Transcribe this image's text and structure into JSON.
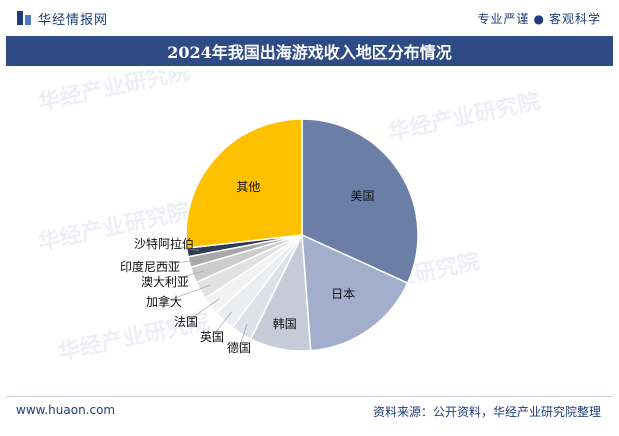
{
  "header": {
    "site_name": "华经情报网",
    "slogan_left": "专业严谨",
    "slogan_right": "客观科学"
  },
  "title": "2024年我国出海游戏收入地区分布情况",
  "footer": {
    "website": "www.huaon.com",
    "source": "资料来源：公开资料，华经产业研究院整理"
  },
  "watermark": "华经产业研究院",
  "colors": {
    "brand": "#1f3d7a",
    "title_bg": "#2e4b86"
  },
  "chart_data": {
    "type": "pie",
    "title": "",
    "start_angle_deg": 0,
    "direction": "clockwise",
    "slices": [
      {
        "label": "美国",
        "value": 31.8,
        "color": "#6b7fa6"
      },
      {
        "label": "日本",
        "value": 17.0,
        "color": "#a2aecb"
      },
      {
        "label": "韩国",
        "value": 8.5,
        "color": "#c5cbd9"
      },
      {
        "label": "德国",
        "value": 3.0,
        "color": "#dde1e9"
      },
      {
        "label": "英国",
        "value": 3.0,
        "color": "#ebedf2"
      },
      {
        "label": "法国",
        "value": 2.5,
        "color": "#f2f2f2"
      },
      {
        "label": "加拿大",
        "value": 2.5,
        "color": "#e2e2e2"
      },
      {
        "label": "澳大利亚",
        "value": 2.2,
        "color": "#cccccc"
      },
      {
        "label": "印度尼西亚",
        "value": 1.5,
        "color": "#a8a8a8"
      },
      {
        "label": "沙特阿拉伯",
        "value": 1.2,
        "color": "#2f3a52"
      },
      {
        "label": "其他",
        "value": 26.8,
        "color": "#ffc000"
      }
    ]
  }
}
